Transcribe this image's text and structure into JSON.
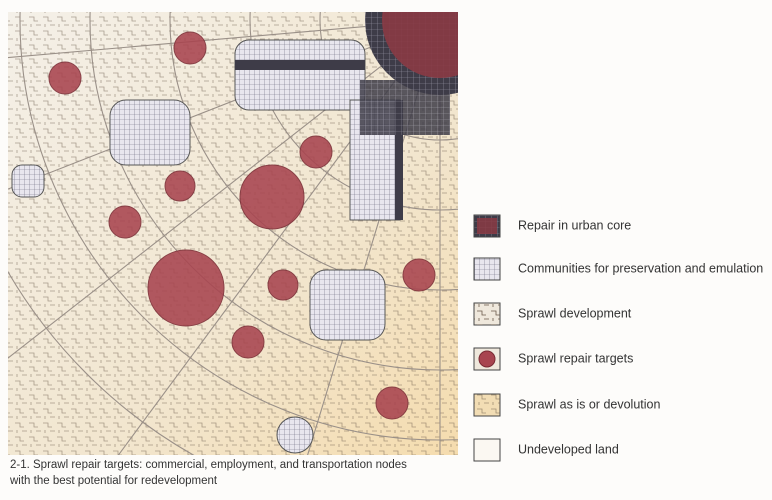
{
  "legend": {
    "items": [
      {
        "label": "Repair in urban core"
      },
      {
        "label": "Communities for preservation and emulation"
      },
      {
        "label": "Sprawl development"
      },
      {
        "label": "Sprawl repair targets"
      },
      {
        "label": "Sprawl as is or devolution"
      },
      {
        "label": "Undeveloped land"
      }
    ]
  },
  "caption": {
    "lines": [
      "2-1.  Sprawl repair targets: commercial, employment, and transportation nodes",
      "with the best potential for redevelopment"
    ]
  }
}
